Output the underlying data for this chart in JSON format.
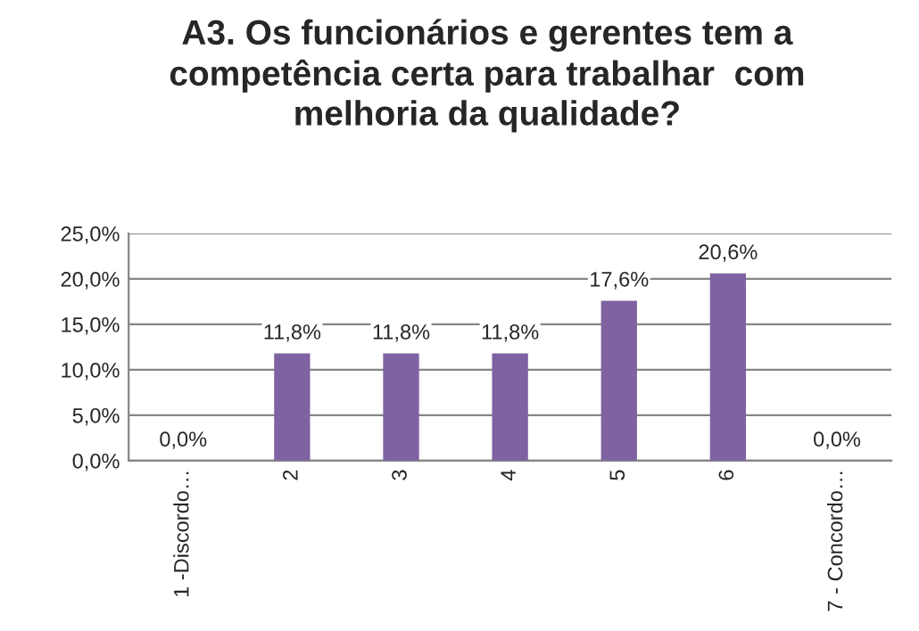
{
  "chart_data": {
    "type": "bar",
    "title": "A3. Os funcionários e gerentes tem a\ncompetência certa para trabalhar  com\nmelhoria da qualidade?",
    "categories": [
      "1 -Discordo…",
      "2",
      "3",
      "4",
      "5",
      "6",
      "7 - Concordo…"
    ],
    "values": [
      0.0,
      11.8,
      11.8,
      11.8,
      17.6,
      20.6,
      0.0
    ],
    "value_labels": [
      "0,0%",
      "11,8%",
      "11,8%",
      "11,8%",
      "17,6%",
      "20,6%",
      "0,0%"
    ],
    "color": "#7f62a1",
    "ylim": [
      0,
      25
    ],
    "yticks": [
      {
        "value": 0,
        "label": "0,0%"
      },
      {
        "value": 5,
        "label": "5,0%"
      },
      {
        "value": 10,
        "label": "10,0%"
      },
      {
        "value": 15,
        "label": "15,0%"
      },
      {
        "value": 20,
        "label": "20,0%"
      },
      {
        "value": 25,
        "label": "25,0%"
      }
    ],
    "grid": "y",
    "legend": false
  }
}
